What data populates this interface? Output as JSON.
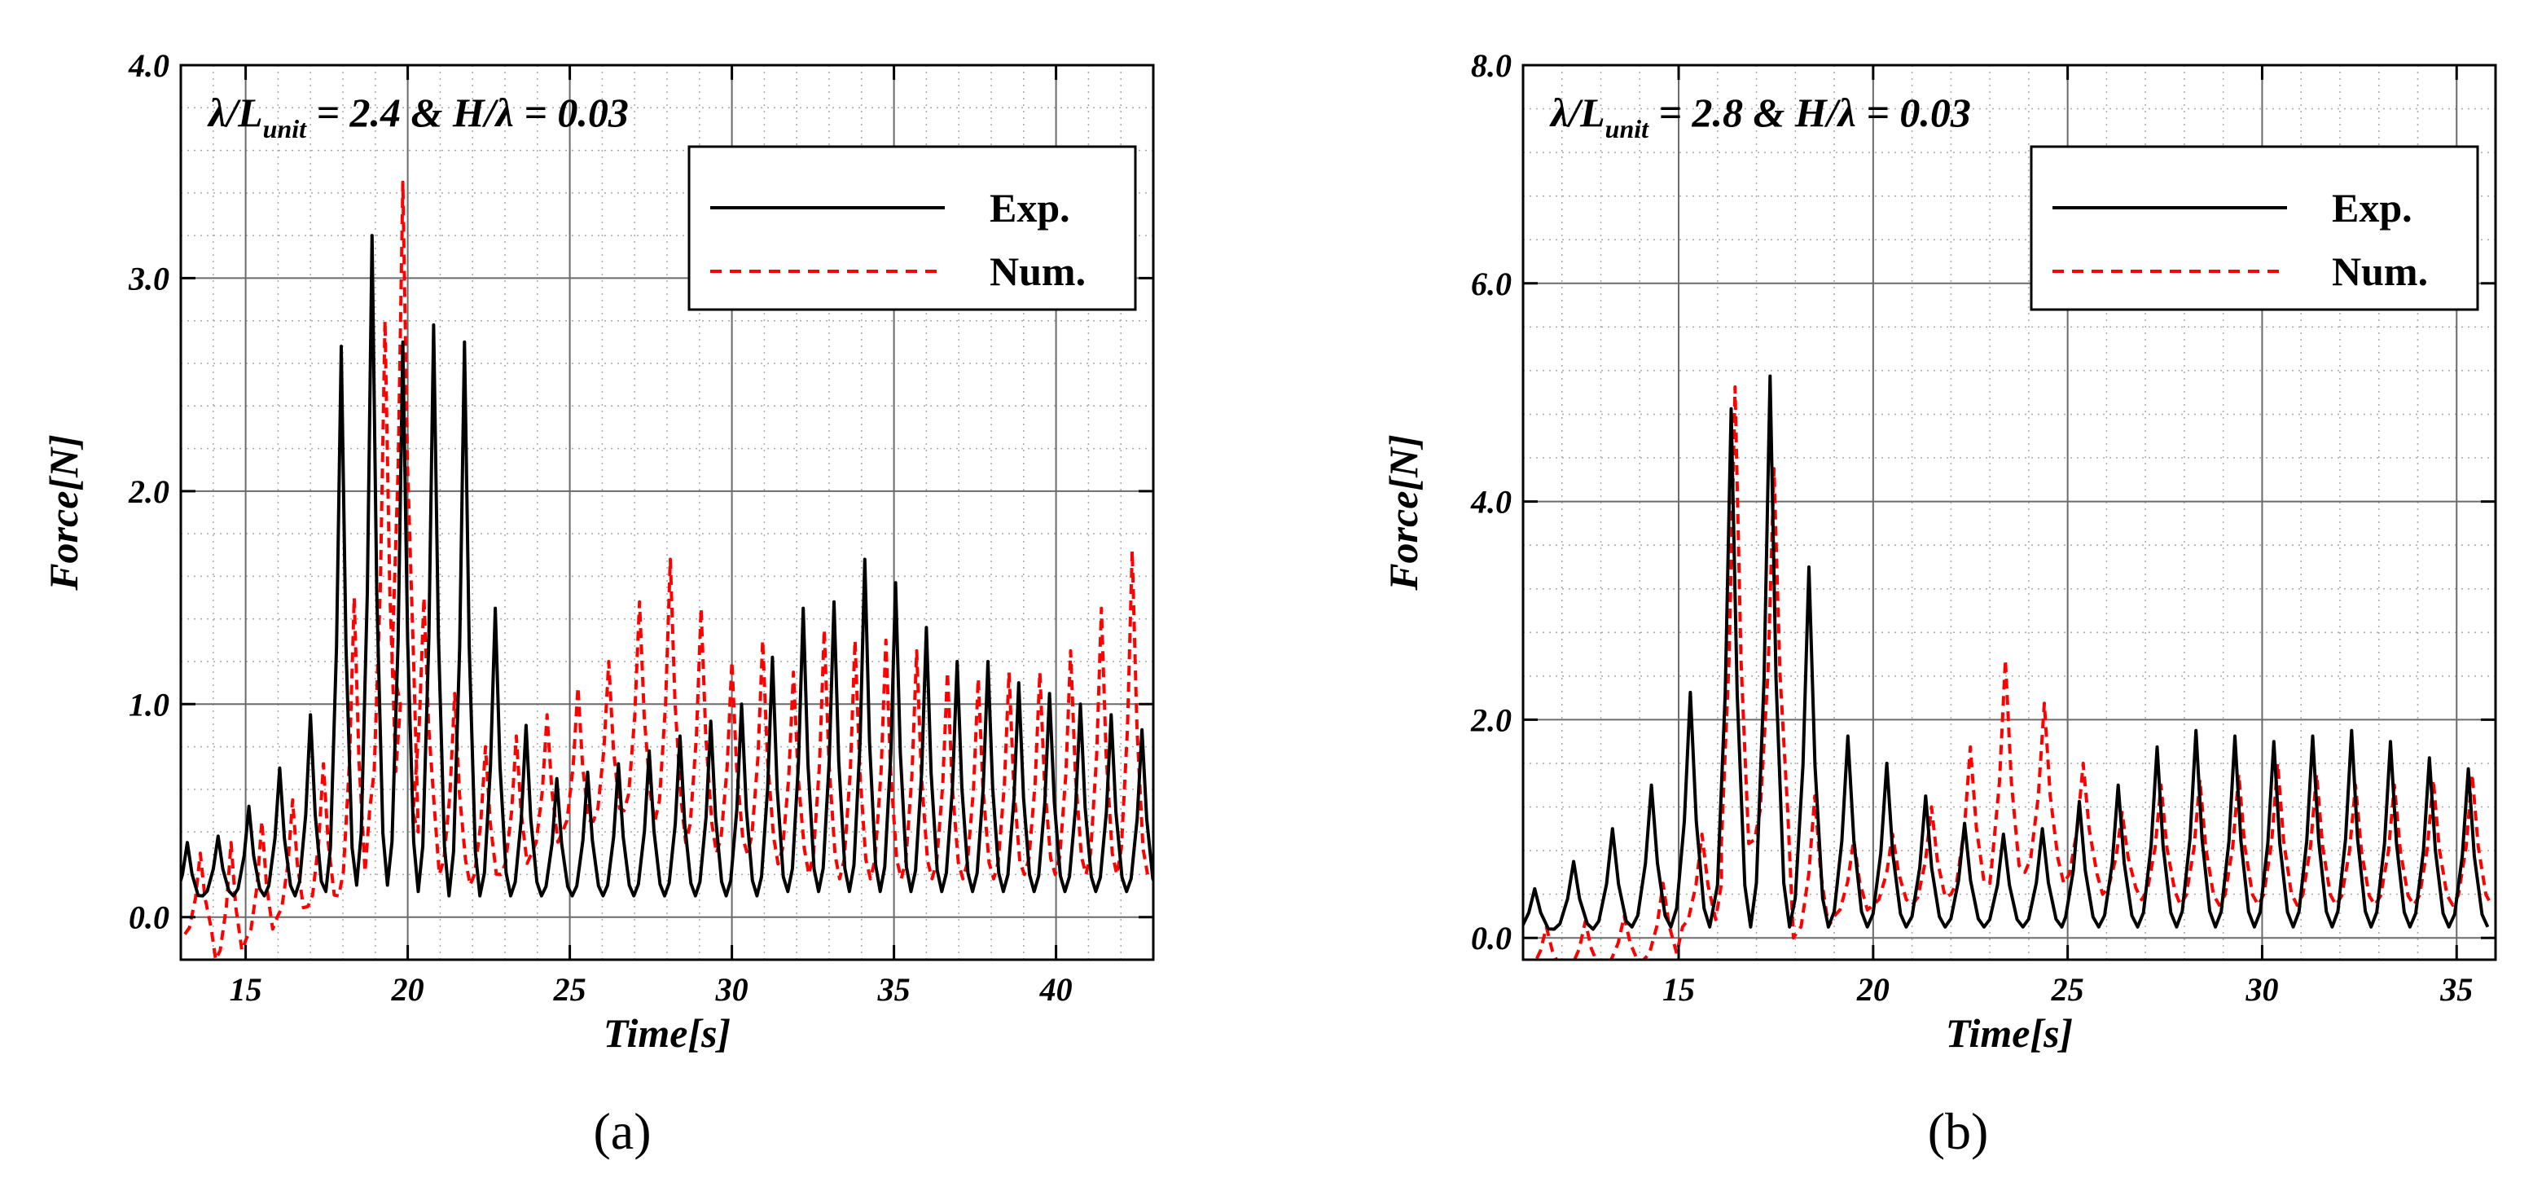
{
  "chart_data": [
    {
      "type": "line",
      "panel_label": "(a)",
      "title_parts": [
        "λ/L",
        "unit",
        " = 2.4 & H/λ = 0.03"
      ],
      "xlabel": "Time[s]",
      "ylabel": "Force[N]",
      "xlim": [
        13,
        43
      ],
      "ylim": [
        -0.2,
        4.0
      ],
      "x_ticks": [
        15,
        20,
        25,
        30,
        35,
        40
      ],
      "y_ticks": [
        0.0,
        1.0,
        2.0,
        3.0,
        4.0
      ],
      "y_tick_labels": [
        "0.0",
        "1.0",
        "2.0",
        "3.0",
        "4.0"
      ],
      "grid": true,
      "legend_position": "top-right",
      "series": [
        {
          "name": "Exp.",
          "color": "#000000",
          "dash": "solid",
          "period": 0.95,
          "phase": 13.2,
          "trough": 0.1,
          "peak_times": [
            13.2,
            14.15,
            15.1,
            16.05,
            17.0,
            17.95,
            18.9,
            19.85,
            20.8,
            21.75,
            22.7,
            23.65,
            24.6,
            25.55,
            26.5,
            27.45,
            28.4,
            29.35,
            30.3,
            31.25,
            32.2,
            33.15,
            34.1,
            35.05,
            36.0,
            36.95,
            37.9,
            38.85,
            39.8,
            40.75,
            41.7,
            42.65
          ],
          "peak_values": [
            0.35,
            0.38,
            0.52,
            0.7,
            0.95,
            2.68,
            3.2,
            2.7,
            2.78,
            2.7,
            1.45,
            0.9,
            0.65,
            0.68,
            0.72,
            0.78,
            0.85,
            0.92,
            1.0,
            1.22,
            1.45,
            1.48,
            1.68,
            1.57,
            1.36,
            1.2,
            1.2,
            1.1,
            1.05,
            1.0,
            0.95,
            0.88
          ],
          "trough_values": [
            0.08,
            0.1,
            0.1,
            0.1,
            0.1,
            0.12,
            0.15,
            0.15,
            0.12,
            0.1,
            0.1,
            0.1,
            0.1,
            0.1,
            0.1,
            0.1,
            0.1,
            0.1,
            0.1,
            0.1,
            0.12,
            0.12,
            0.12,
            0.12,
            0.12,
            0.12,
            0.12,
            0.12,
            0.12,
            0.12,
            0.12,
            0.12
          ]
        },
        {
          "name": "Num.",
          "color": "#ff0000",
          "dash": "dashed",
          "period": 0.95,
          "phase": 13.6,
          "peak_times": [
            13.6,
            14.55,
            15.5,
            16.45,
            17.4,
            18.35,
            19.3,
            19.85,
            20.5,
            21.45,
            22.4,
            23.35,
            24.3,
            25.25,
            26.2,
            27.15,
            28.1,
            29.05,
            30.0,
            30.95,
            31.9,
            32.85,
            33.8,
            34.75,
            35.7,
            36.65,
            37.6,
            38.55,
            39.5,
            40.45,
            41.4,
            42.35
          ],
          "peak_values": [
            0.3,
            0.35,
            0.45,
            0.55,
            0.72,
            1.5,
            2.8,
            3.45,
            1.5,
            1.05,
            0.8,
            0.85,
            0.95,
            1.08,
            1.2,
            1.48,
            1.68,
            1.45,
            1.2,
            1.3,
            1.15,
            1.35,
            1.3,
            1.3,
            1.25,
            1.15,
            1.12,
            1.15,
            1.15,
            1.25,
            1.45,
            1.72
          ],
          "trough_values": [
            -0.08,
            -0.2,
            -0.1,
            0.0,
            0.05,
            0.1,
            0.5,
            1.0,
            0.4,
            0.2,
            0.15,
            0.2,
            0.3,
            0.4,
            0.45,
            0.5,
            0.45,
            0.35,
            0.3,
            0.3,
            0.25,
            0.2,
            0.18,
            0.18,
            0.18,
            0.18,
            0.18,
            0.18,
            0.2,
            0.2,
            0.2,
            0.2
          ]
        }
      ]
    },
    {
      "type": "line",
      "panel_label": "(b)",
      "title_parts": [
        "λ/L",
        "unit",
        " = 2.8 & H/λ = 0.03"
      ],
      "xlabel": "Time[s]",
      "ylabel": "Force[N]",
      "xlim": [
        11,
        36
      ],
      "ylim": [
        -0.2,
        8.0
      ],
      "x_ticks": [
        15,
        20,
        25,
        30,
        35
      ],
      "y_ticks": [
        0.0,
        2.0,
        4.0,
        6.0,
        8.0
      ],
      "y_tick_labels": [
        "0.0",
        "2.0",
        "4.0",
        "6.0",
        "8.0"
      ],
      "grid": true,
      "legend_position": "top-right",
      "series": [
        {
          "name": "Exp.",
          "color": "#000000",
          "dash": "solid",
          "period": 1.0,
          "phase": 11.3,
          "peak_times": [
            11.3,
            12.3,
            13.3,
            14.3,
            15.3,
            16.35,
            17.35,
            18.35,
            19.35,
            20.35,
            21.35,
            22.35,
            23.35,
            24.35,
            25.3,
            26.3,
            27.3,
            28.3,
            29.3,
            30.3,
            31.3,
            32.3,
            33.3,
            34.3,
            35.3
          ],
          "peak_values": [
            0.45,
            0.7,
            1.0,
            1.4,
            2.25,
            4.85,
            5.15,
            3.4,
            1.85,
            1.6,
            1.3,
            1.05,
            0.95,
            1.0,
            1.25,
            1.4,
            1.75,
            1.9,
            1.85,
            1.8,
            1.85,
            1.9,
            1.8,
            1.65,
            1.55
          ],
          "trough_values": [
            0.05,
            0.08,
            0.08,
            0.1,
            0.1,
            0.1,
            0.1,
            0.1,
            0.1,
            0.1,
            0.1,
            0.1,
            0.1,
            0.1,
            0.1,
            0.1,
            0.1,
            0.1,
            0.1,
            0.1,
            0.1,
            0.1,
            0.1,
            0.1,
            0.1
          ]
        },
        {
          "name": "Num.",
          "color": "#ff0000",
          "dash": "dashed",
          "period": 1.0,
          "phase": 11.6,
          "peak_times": [
            11.6,
            12.6,
            13.6,
            14.6,
            15.6,
            16.45,
            17.45,
            18.5,
            19.5,
            20.5,
            21.5,
            22.5,
            23.4,
            24.4,
            25.4,
            26.4,
            27.4,
            28.4,
            29.4,
            30.4,
            31.4,
            32.4,
            33.4,
            34.4,
            35.4
          ],
          "peak_values": [
            0.1,
            0.15,
            0.2,
            0.5,
            0.95,
            5.05,
            4.3,
            1.3,
            0.9,
            0.95,
            1.2,
            1.75,
            2.55,
            2.15,
            1.6,
            1.15,
            1.4,
            1.45,
            1.5,
            1.6,
            1.5,
            1.4,
            1.4,
            1.45,
            1.5
          ],
          "trough_values": [
            -0.3,
            -0.3,
            -0.25,
            -0.2,
            0.1,
            0.5,
            0.9,
            0.0,
            0.2,
            0.3,
            0.3,
            0.4,
            0.5,
            0.6,
            0.5,
            0.4,
            0.35,
            0.3,
            0.3,
            0.3,
            0.3,
            0.3,
            0.3,
            0.3,
            0.3
          ]
        }
      ]
    }
  ]
}
